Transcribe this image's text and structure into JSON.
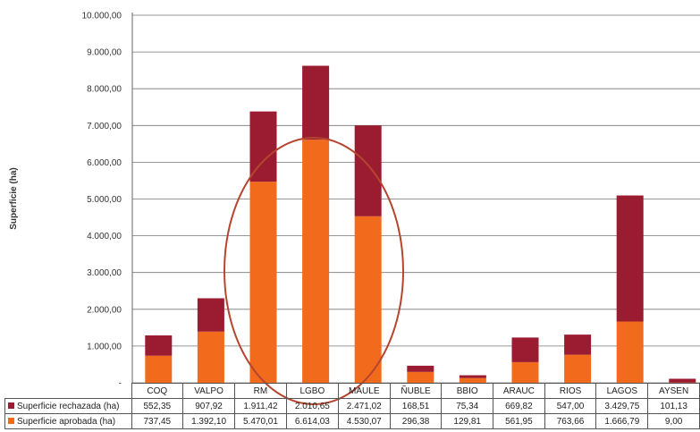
{
  "chart_data": {
    "type": "bar",
    "stacked": true,
    "ylabel": "Superficie (ha)",
    "ylim": [
      0,
      10000
    ],
    "yticks": [
      "-",
      "1.000,00",
      "2.000,00",
      "3.000,00",
      "4.000,00",
      "5.000,00",
      "6.000,00",
      "7.000,00",
      "8.000,00",
      "9.000,00",
      "10.000,00"
    ],
    "categories": [
      "COQ",
      "VALPO",
      "RM",
      "LGBO",
      "MAULE",
      "ÑUBLE",
      "BBIO",
      "ARAUC",
      "RIOS",
      "LAGOS",
      "AYSEN"
    ],
    "series": [
      {
        "name": "Superficie aprobada (ha)",
        "color": "#f26b1d",
        "values": [
          737.45,
          1392.1,
          5470.01,
          6614.03,
          4530.07,
          296.38,
          129.81,
          561.95,
          763.66,
          1666.79,
          9.0
        ],
        "labels": [
          "737,45",
          "1.392,10",
          "5.470,01",
          "6.614,03",
          "4.530,07",
          "296,38",
          "129,81",
          "561,95",
          "763,66",
          "1.666,79",
          "9,00"
        ]
      },
      {
        "name": "Superficie rechazada (ha)",
        "color": "#9b1b30",
        "values": [
          552.35,
          907.92,
          1911.42,
          2010.65,
          2471.02,
          168.51,
          75.34,
          669.82,
          547.0,
          3429.75,
          101.13
        ],
        "labels": [
          "552,35",
          "907,92",
          "1.911,42",
          "2.010,65",
          "2.471,02",
          "168,51",
          "75,34",
          "669,82",
          "547,00",
          "3.429,75",
          "101,13"
        ]
      }
    ],
    "grid": true,
    "annotation_shape": "ellipse highlighting RM, LGBO, MAULE",
    "annotation_color": "#b5452e"
  }
}
